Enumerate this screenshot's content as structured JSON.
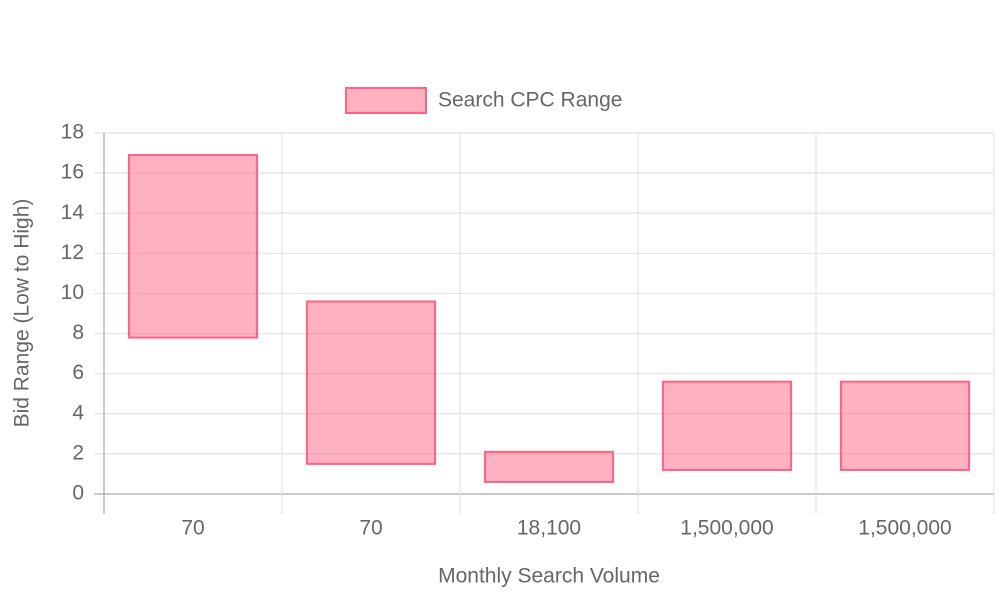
{
  "chart_data": {
    "type": "floating-bar",
    "x_label": "Monthly Search Volume",
    "y_label": "Bid Range (Low to High)",
    "categories": [
      "70",
      "70",
      "18,100",
      "1,500,000",
      "1,500,000"
    ],
    "series": [
      {
        "name": "Search CPC Range",
        "color": "#ff6384",
        "values": [
          [
            7.8,
            16.9
          ],
          [
            1.5,
            9.6
          ],
          [
            0.6,
            2.1
          ],
          [
            1.2,
            5.6
          ],
          [
            1.2,
            5.6
          ]
        ]
      }
    ],
    "ylim": [
      0,
      18
    ],
    "yticks": [
      0,
      2,
      4,
      6,
      8,
      10,
      12,
      14,
      16,
      18
    ],
    "grid": true,
    "legend": "top"
  }
}
